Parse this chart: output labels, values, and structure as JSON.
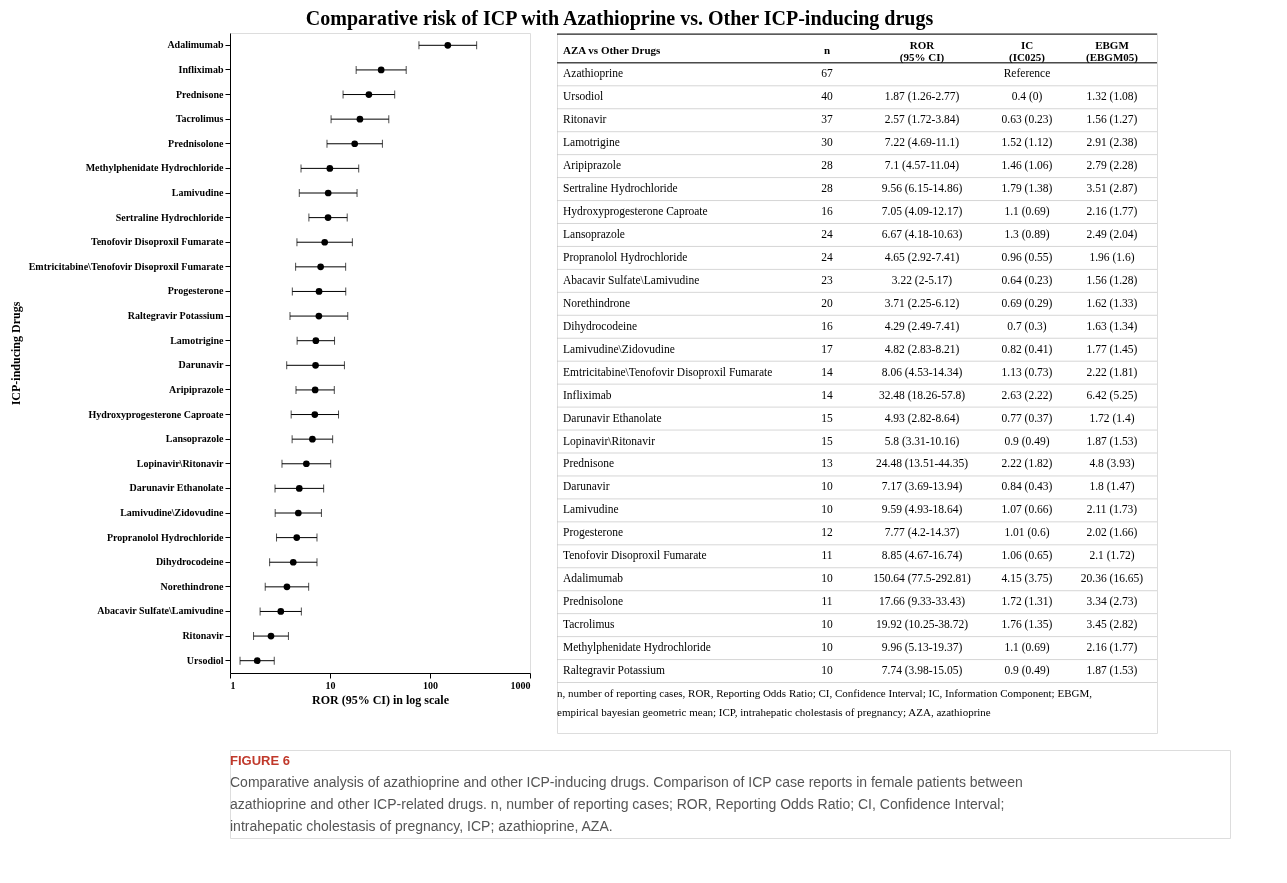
{
  "chart_data": [
    {
      "type": "scatter",
      "title": "Comparative risk of ICP with Azathioprine vs. Other ICP-inducing drugs",
      "xlabel": "ROR (95% CI) in log scale",
      "ylabel": "ICP-inducing Drugs",
      "categories": [
        "Adalimumab",
        "Infliximab",
        "Prednisone",
        "Tacrolimus",
        "Prednisolone",
        "Methylphenidate Hydrochloride",
        "Lamivudine",
        "Sertraline Hydrochloride",
        "Tenofovir Disoproxil Fumarate",
        "Emtricitabine\\Tenofovir Disoproxil Fumarate",
        "Progesterone",
        "Raltegravir Potassium",
        "Lamotrigine",
        "Darunavir",
        "Aripiprazole",
        "Hydroxyprogesterone Caproate",
        "Lansoprazole",
        "Lopinavir\\Ritonavir",
        "Darunavir Ethanolate",
        "Lamivudine\\Zidovudine",
        "Propranolol Hydrochloride",
        "Dihydrocodeine",
        "Norethindrone",
        "Abacavir Sulfate\\Lamivudine",
        "Ritonavir",
        "Ursodiol"
      ],
      "series": [
        {
          "color": "#000000",
          "values": [
            150.64,
            32.48,
            24.48,
            19.92,
            17.66,
            9.96,
            9.59,
            9.56,
            8.85,
            8.06,
            7.77,
            7.74,
            7.22,
            7.17,
            7.1,
            7.05,
            6.67,
            5.8,
            4.93,
            4.82,
            4.65,
            4.29,
            3.71,
            3.22,
            2.57,
            1.87
          ],
          "errors": [
            [
              77.5,
              292.81
            ],
            [
              18.26,
              57.8
            ],
            [
              13.51,
              44.35
            ],
            [
              10.25,
              38.72
            ],
            [
              9.33,
              33.43
            ],
            [
              5.13,
              19.37
            ],
            [
              4.93,
              18.64
            ],
            [
              6.15,
              14.86
            ],
            [
              4.67,
              16.74
            ],
            [
              4.53,
              14.34
            ],
            [
              4.2,
              14.37
            ],
            [
              3.98,
              15.05
            ],
            [
              4.69,
              11.1
            ],
            [
              3.69,
              13.94
            ],
            [
              4.57,
              11.04
            ],
            [
              4.09,
              12.17
            ],
            [
              4.18,
              10.63
            ],
            [
              3.31,
              10.16
            ],
            [
              2.82,
              8.64
            ],
            [
              2.83,
              8.21
            ],
            [
              2.92,
              7.41
            ],
            [
              2.49,
              7.41
            ],
            [
              2.25,
              6.12
            ],
            [
              2,
              5.17
            ],
            [
              1.72,
              3.84
            ],
            [
              1.26,
              2.77
            ]
          ]
        }
      ],
      "orientation": "horizontal",
      "log": "x",
      "xlim": [
        1,
        1000
      ],
      "xticks": [
        1,
        10,
        100,
        1000
      ],
      "grid": false,
      "legend": false,
      "marker": "circle",
      "annotations": [
        "FIGURE 6",
        "Comparative analysis of azathioprine and other ICP-inducing drugs. Comparison of ICP case reports in female patients between azathioprine and other ICP-related drugs. n, number of reporting cases; ROR, Reporting Odds Ratio; CI, Confidence Interval; intrahepatic cholestasis of pregnancy, ICP; azathioprine, AZA."
      ]
    },
    {
      "type": "other",
      "categories": [
        "AZA vs Other Drugs",
        "n",
        "ROR (95% CI)",
        "IC (IC025)",
        "EBGM (EBGM05)"
      ],
      "y_categories": [
        "Azathioprine",
        "Ursodiol",
        "Ritonavir",
        "Lamotrigine",
        "Aripiprazole",
        "Sertraline Hydrochloride",
        "Hydroxyprogesterone Caproate",
        "Lansoprazole",
        "Propranolol Hydrochloride",
        "Abacavir Sulfate\\Lamivudine",
        "Norethindrone",
        "Dihydrocodeine",
        "Lamivudine\\Zidovudine",
        "Emtricitabine\\Tenofovir Disoproxil Fumarate",
        "Infliximab",
        "Darunavir Ethanolate",
        "Lopinavir\\Ritonavir",
        "Prednisone",
        "Darunavir",
        "Lamivudine",
        "Progesterone",
        "Tenofovir Disoproxil Fumarate",
        "Adalimumab",
        "Prednisolone",
        "Tacrolimus",
        "Methylphenidate Hydrochloride",
        "Raltegravir Potassium"
      ],
      "cell_labels": [
        [
          "67",
          null,
          "Reference",
          null
        ],
        [
          "40",
          "1.87 (1.26-2.77)",
          "0.4 (0)",
          "1.32 (1.08)"
        ],
        [
          "37",
          "2.57 (1.72-3.84)",
          "0.63 (0.23)",
          "1.56 (1.27)"
        ],
        [
          "30",
          "7.22 (4.69-11.1)",
          "1.52 (1.12)",
          "2.91 (2.38)"
        ],
        [
          "28",
          "7.1 (4.57-11.04)",
          "1.46 (1.06)",
          "2.79 (2.28)"
        ],
        [
          "28",
          "9.56 (6.15-14.86)",
          "1.79 (1.38)",
          "3.51 (2.87)"
        ],
        [
          "16",
          "7.05 (4.09-12.17)",
          "1.1 (0.69)",
          "2.16 (1.77)"
        ],
        [
          "24",
          "6.67 (4.18-10.63)",
          "1.3 (0.89)",
          "2.49 (2.04)"
        ],
        [
          "24",
          "4.65 (2.92-7.41)",
          "0.96 (0.55)",
          "1.96 (1.6)"
        ],
        [
          "23",
          "3.22 (2-5.17)",
          "0.64 (0.23)",
          "1.56 (1.28)"
        ],
        [
          "20",
          "3.71 (2.25-6.12)",
          "0.69 (0.29)",
          "1.62 (1.33)"
        ],
        [
          "16",
          "4.29 (2.49-7.41)",
          "0.7 (0.3)",
          "1.63 (1.34)"
        ],
        [
          "17",
          "4.82 (2.83-8.21)",
          "0.82 (0.41)",
          "1.77 (1.45)"
        ],
        [
          "14",
          "8.06 (4.53-14.34)",
          "1.13 (0.73)",
          "2.22 (1.81)"
        ],
        [
          "14",
          "32.48 (18.26-57.8)",
          "2.63 (2.22)",
          "6.42 (5.25)"
        ],
        [
          "15",
          "4.93 (2.82-8.64)",
          "0.77 (0.37)",
          "1.72 (1.4)"
        ],
        [
          "15",
          "5.8 (3.31-10.16)",
          "0.9 (0.49)",
          "1.87 (1.53)"
        ],
        [
          "13",
          "24.48 (13.51-44.35)",
          "2.22 (1.82)",
          "4.8 (3.93)"
        ],
        [
          "10",
          "7.17 (3.69-13.94)",
          "0.84 (0.43)",
          "1.8 (1.47)"
        ],
        [
          "10",
          "9.59 (4.93-18.64)",
          "1.07 (0.66)",
          "2.11 (1.73)"
        ],
        [
          "12",
          "7.77 (4.2-14.37)",
          "1.01 (0.6)",
          "2.02 (1.66)"
        ],
        [
          "11",
          "8.85 (4.67-16.74)",
          "1.06 (0.65)",
          "2.1 (1.72)"
        ],
        [
          "10",
          "150.64 (77.5-292.81)",
          "4.15 (3.75)",
          "20.36 (16.65)"
        ],
        [
          "11",
          "17.66 (9.33-33.43)",
          "1.72 (1.31)",
          "3.34 (2.73)"
        ],
        [
          "10",
          "19.92 (10.25-38.72)",
          "1.76 (1.35)",
          "3.45 (2.82)"
        ],
        [
          "10",
          "9.96 (5.13-19.37)",
          "1.1 (0.69)",
          "2.16 (1.77)"
        ],
        [
          "10",
          "7.74 (3.98-15.05)",
          "0.9 (0.49)",
          "1.87 (1.53)"
        ]
      ],
      "annotations": [
        "n, number of reporting cases, ROR, Reporting Odds Ratio; CI, Confidence Interval; IC, Information Component; EBGM, empirical bayesian geometric mean; ICP, intrahepatic cholestasis of pregnancy; AZA, azathioprine"
      ]
    }
  ]
}
